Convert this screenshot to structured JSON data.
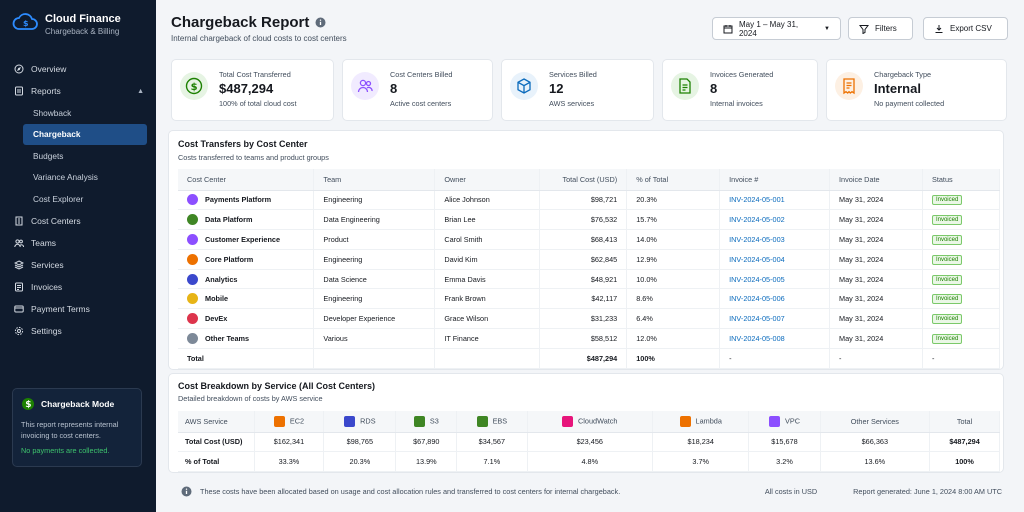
{
  "app": {
    "name": "Cloud Finance",
    "subtitle": "Chargeback & Billing"
  },
  "nav": {
    "overview": "Overview",
    "reports": "Reports",
    "showback": "Showback",
    "chargeback": "Chargeback",
    "budgets": "Budgets",
    "variance": "Variance Analysis",
    "explorer": "Cost Explorer",
    "cost_centers": "Cost Centers",
    "teams": "Teams",
    "services": "Services",
    "invoices": "Invoices",
    "payment_terms": "Payment Terms",
    "settings": "Settings"
  },
  "mode": {
    "title": "Chargeback Mode",
    "text": "This report represents internal invoicing to cost centers.",
    "note": "No payments are collected."
  },
  "header": {
    "title": "Chargeback Report",
    "subtitle": "Internal chargeback of cloud costs to cost centers",
    "date_range": "May 1 – May 31, 2024",
    "filters": "Filters",
    "export": "Export CSV"
  },
  "kpis": [
    {
      "label": "Total Cost Transferred",
      "value": "$487,294",
      "sub": "100% of total cloud cost"
    },
    {
      "label": "Cost Centers Billed",
      "value": "8",
      "sub": "Active cost centers"
    },
    {
      "label": "Services Billed",
      "value": "12",
      "sub": "AWS services"
    },
    {
      "label": "Invoices Generated",
      "value": "8",
      "sub": "Internal invoices"
    },
    {
      "label": "Chargeback Type",
      "value": "Internal",
      "sub": "No payment collected"
    }
  ],
  "transfers": {
    "title": "Cost Transfers by Cost Center",
    "subtitle": "Costs transferred to teams and product groups",
    "columns": [
      "Cost Center",
      "Team",
      "Owner",
      "Total Cost (USD)",
      "% of Total",
      "Invoice #",
      "Invoice Date",
      "Status"
    ],
    "rows": [
      [
        "Payments Platform",
        "Engineering",
        "Alice Johnson",
        "$98,721",
        "20.3%",
        "INV-2024-05-001",
        "May 31, 2024",
        "Invoiced"
      ],
      [
        "Data Platform",
        "Data Engineering",
        "Brian Lee",
        "$76,532",
        "15.7%",
        "INV-2024-05-002",
        "May 31, 2024",
        "Invoiced"
      ],
      [
        "Customer Experience",
        "Product",
        "Carol Smith",
        "$68,413",
        "14.0%",
        "INV-2024-05-003",
        "May 31, 2024",
        "Invoiced"
      ],
      [
        "Core Platform",
        "Engineering",
        "David Kim",
        "$62,845",
        "12.9%",
        "INV-2024-05-004",
        "May 31, 2024",
        "Invoiced"
      ],
      [
        "Analytics",
        "Data Science",
        "Emma Davis",
        "$48,921",
        "10.0%",
        "INV-2024-05-005",
        "May 31, 2024",
        "Invoiced"
      ],
      [
        "Mobile",
        "Engineering",
        "Frank Brown",
        "$42,117",
        "8.6%",
        "INV-2024-05-006",
        "May 31, 2024",
        "Invoiced"
      ],
      [
        "DevEx",
        "Developer Experience",
        "Grace Wilson",
        "$31,233",
        "6.4%",
        "INV-2024-05-007",
        "May 31, 2024",
        "Invoiced"
      ],
      [
        "Other Teams",
        "Various",
        "IT Finance",
        "$58,512",
        "12.0%",
        "INV-2024-05-008",
        "May 31, 2024",
        "Invoiced"
      ]
    ],
    "row_colors": [
      "#8c4fff",
      "#3f8624",
      "#8c4fff",
      "#ed7100",
      "#3b48cc",
      "#e7b416",
      "#dd344c",
      "#7d8998"
    ],
    "total": [
      "Total",
      "",
      "",
      "$487,294",
      "100%",
      "-",
      "-",
      "-"
    ]
  },
  "breakdown": {
    "title": "Cost Breakdown by Service (All Cost Centers)",
    "subtitle": "Detailed breakdown of costs by AWS service",
    "header_label": "AWS Service",
    "services": [
      "EC2",
      "RDS",
      "S3",
      "EBS",
      "CloudWatch",
      "Lambda",
      "VPC",
      "Other Services",
      "Total"
    ],
    "service_colors": [
      "#ed7100",
      "#3b48cc",
      "#3f8624",
      "#3f8624",
      "#e7157b",
      "#ed7100",
      "#8c4fff",
      "",
      ""
    ],
    "rows": [
      {
        "label": "Total Cost (USD)",
        "values": [
          "$162,341",
          "$98,765",
          "$67,890",
          "$34,567",
          "$23,456",
          "$18,234",
          "$15,678",
          "$66,363",
          "$487,294"
        ]
      },
      {
        "label": "% of Total",
        "values": [
          "33.3%",
          "20.3%",
          "13.9%",
          "7.1%",
          "4.8%",
          "3.7%",
          "3.2%",
          "13.6%",
          "100%"
        ]
      }
    ]
  },
  "footer": {
    "note": "These costs have been allocated based on usage and cost allocation rules and transferred to cost centers for internal chargeback.",
    "currency": "All costs in USD",
    "generated": "Report generated: June 1, 2024 8:00 AM UTC"
  }
}
